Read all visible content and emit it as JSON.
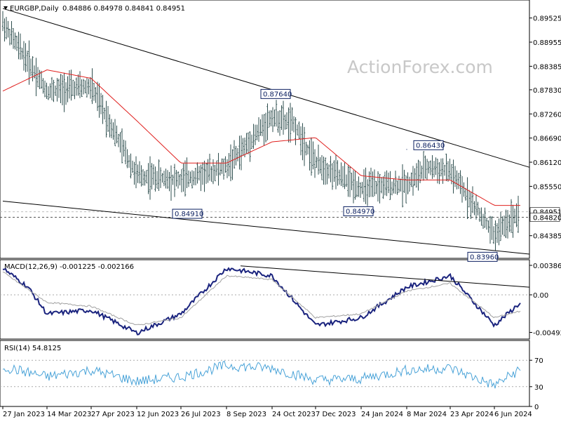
{
  "header": {
    "symbol": "EURGBP,Daily",
    "ohlc": "0.84886 0.84978 0.84841 0.84951",
    "macd_label": "MACD(12,26,9) -0.001225 -0.002166",
    "rsi_label": "RSI(14) 54.8125"
  },
  "watermark": "ActionForex.com",
  "colors": {
    "bars": "#2f4f4f",
    "ma": "#e0201e",
    "macd": "#1a237e",
    "signal": "#a0a0a0",
    "rsi": "#4aa3d8",
    "trendline": "#000000",
    "label_box": "#0b1f60"
  },
  "chart_data": [
    {
      "type": "candlestick",
      "title": "EURGBP,Daily",
      "ylim": [
        0.8385,
        0.8995
      ],
      "yticks": [
        "0.89525",
        "0.88955",
        "0.88385",
        "0.87830",
        "0.87260",
        "0.86690",
        "0.86120",
        "0.85550",
        "0.84951",
        "0.84820",
        "0.84385"
      ],
      "xticks": [
        "27 Jan 2023",
        "14 Mar 2023",
        "27 Apr 2023",
        "12 Jun 2023",
        "26 Jul 2023",
        "8 Sep 2023",
        "24 Oct 2023",
        "7 Dec 2023",
        "24 Jan 2024",
        "8 Mar 2024",
        "23 Apr 2024",
        "6 Jun 2024"
      ],
      "series": [
        {
          "anchors": [
            [
              "27 Jan 2023",
              0.894
            ],
            [
              "Feb 2023",
              0.885
            ],
            [
              "14 Mar 2023",
              0.878
            ],
            [
              "27 Apr 2023",
              0.879
            ],
            [
              "12 Jun 2023",
              0.858
            ],
            [
              "26 Jul 2023",
              0.857
            ],
            [
              "8 Sep 2023",
              0.86
            ],
            [
              "24 Oct 2023",
              0.872
            ],
            [
              "Nov 2023",
              0.87
            ],
            [
              "7 Dec 2023",
              0.861
            ],
            [
              "24 Jan 2024",
              0.855
            ],
            [
              "8 Mar 2024",
              0.856
            ],
            [
              "Apr 2024",
              0.86
            ],
            [
              "23 Apr 2024",
              0.859
            ],
            [
              "6 Jun 2024",
              0.844
            ],
            [
              "Jun 2024",
              0.8495
            ]
          ]
        },
        {
          "name": "MA",
          "anchors": [
            [
              "27 Jan 2023",
              0.878
            ],
            [
              "14 Mar 2023",
              0.883
            ],
            [
              "27 Apr 2023",
              0.881
            ],
            [
              "12 Jun 2023",
              0.871
            ],
            [
              "26 Jul 2023",
              0.861
            ],
            [
              "8 Sep 2023",
              0.861
            ],
            [
              "24 Oct 2023",
              0.866
            ],
            [
              "7 Dec 2023",
              0.867
            ],
            [
              "24 Jan 2024",
              0.858
            ],
            [
              "8 Mar 2024",
              0.857
            ],
            [
              "23 Apr 2024",
              0.857
            ],
            [
              "6 Jun 2024",
              0.851
            ]
          ]
        }
      ],
      "annotations": [
        {
          "text": "0.87640",
          "x": "24 Oct 2023",
          "y": 0.8764
        },
        {
          "text": "0.86430",
          "x": "8 Mar 2024",
          "y": 0.8643
        },
        {
          "text": "0.84910",
          "x": "26 Jul 2023",
          "y": 0.8491
        },
        {
          "text": "0.84970",
          "x": "24 Jan 2024",
          "y": 0.8497
        },
        {
          "text": "0.83960",
          "x": "6 Jun 2024",
          "y": 0.8396
        }
      ],
      "trendlines": [
        {
          "from": [
            "27 Jan 2023",
            0.8975
          ],
          "to": [
            "Jun 2024",
            0.86
          ]
        },
        {
          "from": [
            "27 Jan 2023",
            0.852
          ],
          "to": [
            "Jun 2024",
            0.8395
          ]
        }
      ],
      "reference_lines": [
        0.84951,
        0.8482
      ]
    },
    {
      "type": "line",
      "title": "MACD(12,26,9) -0.001225 -0.002166",
      "ylim": [
        -0.0058,
        0.0046
      ],
      "yticks": [
        "0.003863",
        "0.00",
        "-0.004926"
      ],
      "series": [
        {
          "name": "MACD",
          "anchors": [
            [
              "27 Jan 2023",
              0.0035
            ],
            [
              "Feb 2023",
              0.001
            ],
            [
              "14 Mar 2023",
              -0.0025
            ],
            [
              "27 Apr 2023",
              -0.002
            ],
            [
              "12 Jun 2023",
              -0.005
            ],
            [
              "26 Jul 2023",
              -0.0025
            ],
            [
              "8 Sep 2023",
              0.0035
            ],
            [
              "24 Oct 2023",
              0.0025
            ],
            [
              "7 Dec 2023",
              -0.004
            ],
            [
              "24 Jan 2024",
              -0.003
            ],
            [
              "8 Mar 2024",
              0.001
            ],
            [
              "23 Apr 2024",
              0.0025
            ],
            [
              "6 Jun 2024",
              -0.004
            ],
            [
              "Jun 2024",
              -0.0012
            ]
          ]
        },
        {
          "name": "Signal",
          "anchors": [
            [
              "27 Jan 2023",
              0.003
            ],
            [
              "14 Mar 2023",
              -0.001
            ],
            [
              "27 Apr 2023",
              -0.0015
            ],
            [
              "12 Jun 2023",
              -0.004
            ],
            [
              "26 Jul 2023",
              -0.003
            ],
            [
              "8 Sep 2023",
              0.0025
            ],
            [
              "24 Oct 2023",
              0.002
            ],
            [
              "7 Dec 2023",
              -0.003
            ],
            [
              "24 Jan 2024",
              -0.0025
            ],
            [
              "8 Mar 2024",
              0.0005
            ],
            [
              "23 Apr 2024",
              0.0015
            ],
            [
              "6 Jun 2024",
              -0.003
            ],
            [
              "Jun 2024",
              -0.0022
            ]
          ]
        }
      ],
      "zero_line": 0.0
    },
    {
      "type": "line",
      "title": "RSI(14) 54.8125",
      "ylim": [
        0,
        100
      ],
      "yticks": [
        "70",
        "30",
        "0"
      ],
      "series": [
        {
          "name": "RSI",
          "anchors": [
            [
              "27 Jan 2023",
              60
            ],
            [
              "14 Mar 2023",
              45
            ],
            [
              "27 Apr 2023",
              55
            ],
            [
              "12 Jun 2023",
              38
            ],
            [
              "26 Jul 2023",
              45
            ],
            [
              "8 Sep 2023",
              62
            ],
            [
              "24 Oct 2023",
              58
            ],
            [
              "7 Dec 2023",
              40
            ],
            [
              "24 Jan 2024",
              42
            ],
            [
              "8 Mar 2024",
              55
            ],
            [
              "23 Apr 2024",
              58
            ],
            [
              "6 Jun 2024",
              32
            ],
            [
              "Jun 2024",
              54.81
            ]
          ]
        }
      ],
      "reference_lines": [
        70,
        30
      ]
    }
  ]
}
